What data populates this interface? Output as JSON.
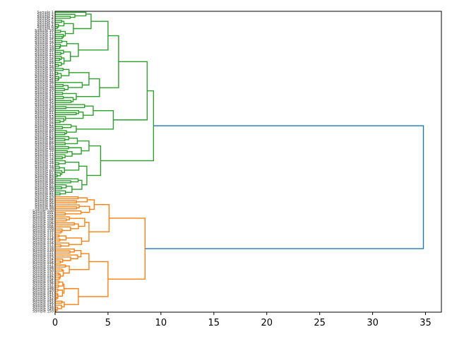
{
  "chart_data": {
    "type": "dendrogram",
    "orientation": "left",
    "title": "",
    "xlabel": "",
    "ylabel": "",
    "xlim": [
      0,
      36.5
    ],
    "x_ticks": [
      {
        "value": 0,
        "label": "0"
      },
      {
        "value": 5,
        "label": "5"
      },
      {
        "value": 10,
        "label": "10"
      },
      {
        "value": 15,
        "label": "15"
      },
      {
        "value": 20,
        "label": "20"
      },
      {
        "value": 25,
        "label": "25"
      },
      {
        "value": 30,
        "label": "30"
      },
      {
        "value": 35,
        "label": "35"
      }
    ],
    "grid": false,
    "leaf_count": 150,
    "leaf_label_prefix": "Sample",
    "colors": {
      "root": "#1f77b4",
      "cluster_green": "#2ca02c",
      "cluster_orange": "#ff7f0e"
    },
    "clusters": [
      {
        "color": "#2ca02c",
        "leaf_count": 92,
        "merge_height": 9.3,
        "sub_merges": [
          {
            "height": 8.7,
            "children": [
              6.0,
              5.5
            ]
          },
          {
            "height": 6.0,
            "children": [
              5.0,
              4.2
            ]
          },
          {
            "height": 5.5,
            "children": [
              3.6,
              2.0
            ]
          },
          {
            "height": 4.3,
            "children": [
              3.2,
              3.0
            ]
          },
          {
            "height": 5.0,
            "children": [
              3.4,
              3.2
            ]
          },
          {
            "height": 4.2,
            "children": [
              3.0,
              2.6
            ]
          }
        ]
      },
      {
        "color": "#ff7f0e",
        "leaf_count": 58,
        "merge_height": 8.5,
        "sub_merges": [
          {
            "height": 5.1,
            "children": [
              3.7,
              3.2
            ]
          },
          {
            "height": 5.0,
            "children": [
              3.2,
              2.2
            ]
          },
          {
            "height": 3.2,
            "children": [
              2.5,
              1.8
            ]
          },
          {
            "height": 2.2,
            "children": [
              1.8,
              1.5
            ]
          }
        ]
      }
    ],
    "root_merge_height": 34.8
  }
}
